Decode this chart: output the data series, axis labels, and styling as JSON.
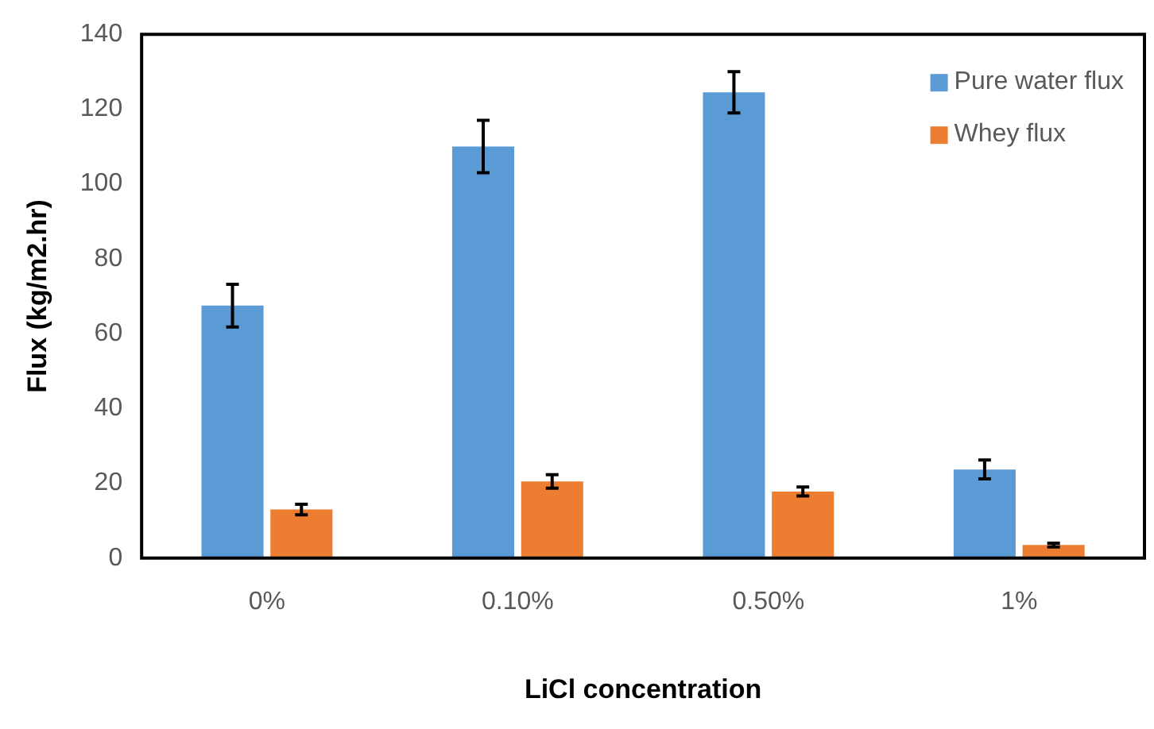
{
  "chart_data": {
    "type": "bar",
    "xlabel": "LiCl concentration",
    "ylabel": "Flux (kg/m2.hr)",
    "categories": [
      "0%",
      "0.10%",
      "0.50%",
      "1%"
    ],
    "series": [
      {
        "name": "Pure water flux",
        "color": "#5b9bd5",
        "values": [
          67.5,
          110,
          124.5,
          23.7
        ],
        "errors": [
          5.7,
          7,
          5.5,
          2.5
        ]
      },
      {
        "name": "Whey flux",
        "color": "#ed7d31",
        "values": [
          13,
          20.5,
          17.8,
          3.5
        ],
        "errors": [
          1.4,
          1.8,
          1.2,
          0.5
        ]
      }
    ],
    "ylim": [
      0,
      140
    ],
    "yticks": [
      0,
      20,
      40,
      60,
      80,
      100,
      120,
      140
    ],
    "grid": false,
    "legend": "top right"
  }
}
